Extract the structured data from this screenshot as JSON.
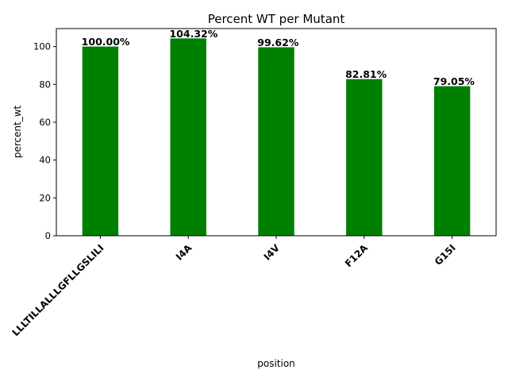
{
  "chart_data": {
    "type": "bar",
    "title": "Percent WT per Mutant",
    "xlabel": "position",
    "ylabel": "percent_wt",
    "categories": [
      "LLLTILLALLLGFLLGSLILI",
      "I4A",
      "I4V",
      "F12A",
      "G15I"
    ],
    "values": [
      100.0,
      104.32,
      99.62,
      82.81,
      79.05
    ],
    "data_labels": [
      "100.00%",
      "104.32%",
      "99.62%",
      "82.81%",
      "79.05%"
    ],
    "yticks": [
      0,
      20,
      40,
      60,
      80,
      100
    ],
    "ylim": [
      0,
      109.5
    ],
    "bar_color": "#008000",
    "grid": false,
    "legend": "none"
  }
}
